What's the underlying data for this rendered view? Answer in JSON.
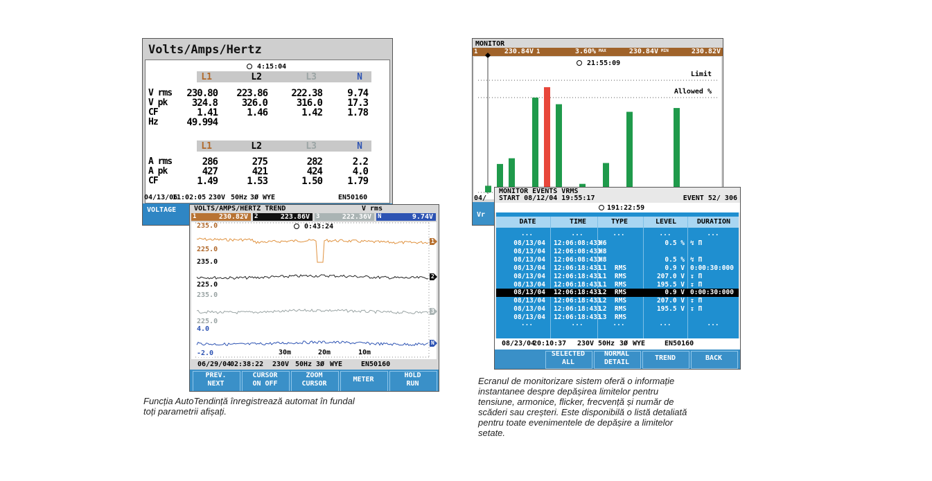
{
  "vah": {
    "title": "Volts/Amps/Hertz",
    "clock": "4:15:04",
    "phases": [
      "L1",
      "L2",
      "L3",
      "N"
    ],
    "volt_rows": [
      {
        "label": "V rms",
        "values": [
          "230.80",
          "223.86",
          "222.38",
          "9.74"
        ]
      },
      {
        "label": "V pk",
        "values": [
          "324.8",
          "326.0",
          "316.0",
          "17.3"
        ]
      },
      {
        "label": "CF",
        "values": [
          "1.41",
          "1.46",
          "1.42",
          "1.78"
        ]
      },
      {
        "label": "Hz",
        "values": [
          "49.994"
        ]
      }
    ],
    "amp_phases": [
      "L1",
      "L2",
      "L3",
      "N"
    ],
    "amp_rows": [
      {
        "label": "A rms",
        "values": [
          "286",
          "275",
          "282",
          "2.2"
        ]
      },
      {
        "label": "A pk",
        "values": [
          "427",
          "421",
          "424",
          "4.0"
        ]
      },
      {
        "label": "CF",
        "values": [
          "1.49",
          "1.53",
          "1.50",
          "1.79"
        ]
      }
    ],
    "footer": [
      "04/13/06",
      "11:02:05",
      "230V",
      "50Hz",
      "3Ø",
      "WYE",
      "EN50160"
    ],
    "button": "VOLTAGE"
  },
  "trend": {
    "title": "VOLTS/AMPS/HERTZ TREND",
    "quantity": "V rms",
    "clock": "0:43:24",
    "readings": [
      {
        "id": "1",
        "value": "230.82V"
      },
      {
        "id": "2",
        "value": "223.86V"
      },
      {
        "id": "3",
        "value": "222.36V"
      },
      {
        "id": "N",
        "value": "9.74V"
      }
    ],
    "scale_labels": [
      "235.0",
      "225.0",
      "235.0",
      "225.0",
      "235.0",
      "225.0",
      "4.0",
      "-2.0"
    ],
    "time_labels": [
      "30m",
      "20m",
      "10m"
    ],
    "footer": [
      "06/29/04",
      "02:38:22",
      "230V",
      "50Hz",
      "3Ø",
      "WYE",
      "EN50160"
    ],
    "buttons": [
      {
        "lines": [
          "PREV.",
          "NEXT"
        ]
      },
      {
        "lines": [
          "CURSOR",
          "ON OFF"
        ]
      },
      {
        "lines": [
          "ZOOM",
          "CURSOR"
        ]
      },
      {
        "lines": [
          "METER"
        ]
      },
      {
        "lines": [
          "HOLD",
          "RUN"
        ]
      }
    ]
  },
  "monitor": {
    "title": "MONITOR",
    "clock": "21:55:09",
    "limit": "Limit",
    "allowed": "Allowed %",
    "readings": [
      {
        "id": "1",
        "value": "230.84V"
      },
      {
        "id": "1",
        "value": "3.60%"
      },
      {
        "id": "MAX",
        "value": "230.84V"
      },
      {
        "id": "MIN",
        "value": "230.82V"
      }
    ],
    "bars": [
      7,
      30,
      36,
      null,
      100,
      111,
      93,
      null,
      9,
      null,
      31,
      null,
      85,
      null,
      null,
      null,
      89
    ],
    "bar_color": "#1f9a4b",
    "highlight_index": 5,
    "highlight_color": "#e8473b",
    "partial_footer": "04/",
    "partial_button": "Vr"
  },
  "events": {
    "title": "MONITOR EVENTS VRMS",
    "start": "START 08/12/04 19:55:17",
    "event": "EVENT 52/ 306",
    "clock": "191:22:59",
    "columns": [
      "DATE",
      "TIME",
      "TYPE",
      "LEVEL",
      "DURATION"
    ],
    "rows": [
      [
        "...",
        "...",
        "...",
        "...",
        "..."
      ],
      [
        "08/13/04",
        "12:06:08:433",
        "H6",
        "0.5 %",
        "↯ Π"
      ],
      [
        "08/13/04",
        "12:06:08:433",
        "H8"
      ],
      [
        "08/13/04",
        "12:06:08:433",
        "H8",
        "0.5 %",
        "↯ Π"
      ],
      [
        "08/13/04",
        "12:06:18:433",
        "L1  RMS",
        "0.9 V",
        "0:00:30:000"
      ],
      [
        "08/13/04",
        "12:06:18:433",
        "L1  RMS",
        "207.0 V",
        "↧ Π"
      ],
      [
        "08/13/04",
        "12:06:18:433",
        "L1  RMS",
        "195.5 V",
        "↧ Π"
      ],
      [
        "08/13/04",
        "12:06:18:433",
        "L2  RMS",
        "0.9 V",
        "0:00:30:000"
      ],
      [
        "08/13/04",
        "12:06:18:433",
        "L2  RMS",
        "207.0 V",
        "↧ Π"
      ],
      [
        "08/13/04",
        "12:06:18:433",
        "L2  RMS",
        "195.5 V",
        "↧ Π"
      ],
      [
        "08/13/04",
        "12:06:18:433",
        "L3  RMS"
      ],
      [
        "...",
        "...",
        "...",
        "...",
        "..."
      ]
    ],
    "selected_row": 7,
    "footer": [
      "08/23/04",
      "20:10:37",
      "230V",
      "50Hz",
      "3Ø",
      "WYE",
      "EN50160"
    ],
    "buttons": [
      {
        "lines": [
          "SELECTED",
          "ALL"
        ]
      },
      {
        "lines": [
          "NORMAL",
          "DETAIL"
        ]
      },
      {
        "lines": [
          "TREND"
        ]
      },
      {
        "lines": [
          "BACK"
        ]
      }
    ]
  },
  "captions": {
    "left": [
      "Funcția AutoTendință înregistrează automat în fundal",
      "toți parametrii afișați."
    ],
    "right": [
      "Ecranul de monitorizare sistem oferă o informație",
      "instantanee despre depășirea limitelor pentru",
      "tensiune, armonice, flicker, frecvență și număr de",
      "scăderi sau creșteri. Este disponibilă o listă detaliată",
      "pentru toate evenimentele de depășire a limitelor",
      "setate."
    ]
  }
}
